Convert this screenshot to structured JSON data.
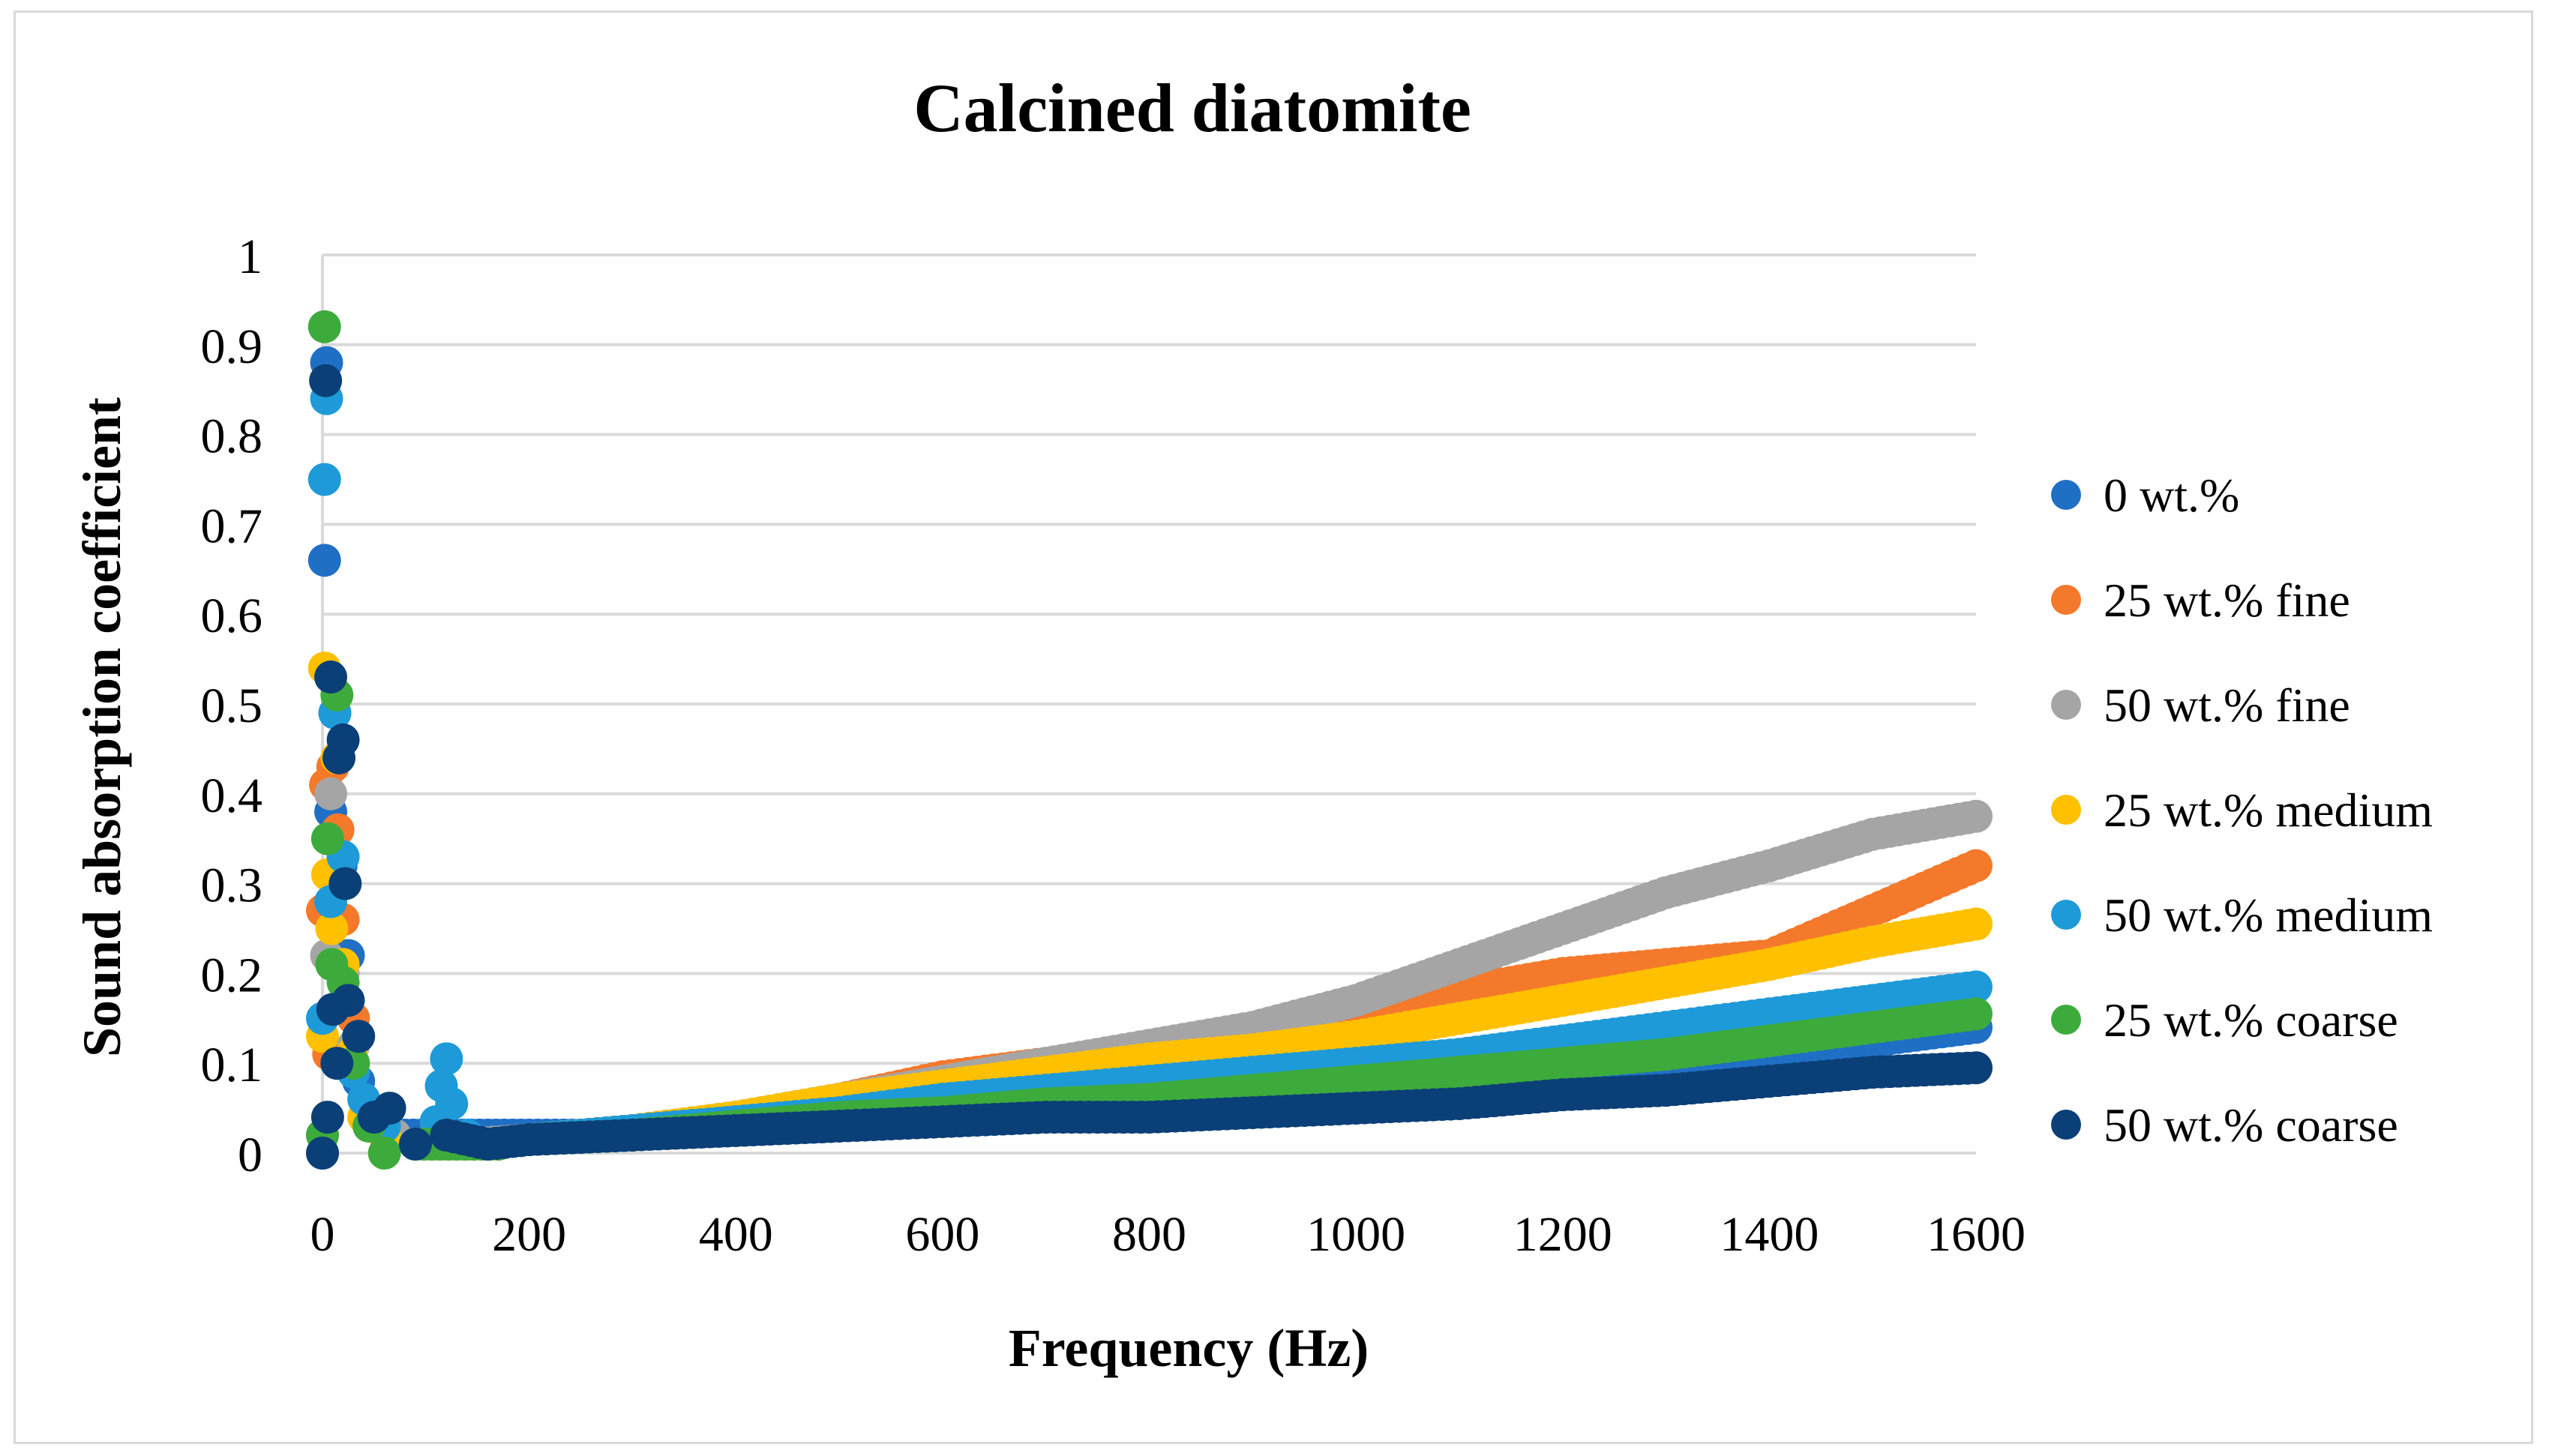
{
  "chart_data": {
    "type": "scatter",
    "title": "Calcined diatomite",
    "xlabel": "Frequency (Hz)",
    "ylabel": "Sound absorption coefficient",
    "xlim": [
      0,
      1600
    ],
    "ylim": [
      0,
      1
    ],
    "xticks": [
      "0",
      "200",
      "400",
      "600",
      "800",
      "1000",
      "1200",
      "1400",
      "1600"
    ],
    "yticks": [
      "0",
      "0.1",
      "0.2",
      "0.3",
      "0.4",
      "0.5",
      "0.6",
      "0.7",
      "0.8",
      "0.9",
      "1"
    ],
    "grid": true,
    "legend_position": "right",
    "series": [
      {
        "name": "0 wt.%",
        "color": "#1f6fc5",
        "x": [
          0,
          2,
          4,
          8,
          12,
          18,
          25,
          35,
          50,
          80,
          120,
          160,
          200,
          300,
          400,
          500,
          600,
          700,
          800,
          900,
          1000,
          1100,
          1200,
          1300,
          1400,
          1500,
          1600
        ],
        "y": [
          0.0,
          0.66,
          0.88,
          0.38,
          0.49,
          0.32,
          0.22,
          0.08,
          0.03,
          0.02,
          0.02,
          0.02,
          0.02,
          0.02,
          0.03,
          0.04,
          0.045,
          0.05,
          0.06,
          0.065,
          0.07,
          0.08,
          0.09,
          0.1,
          0.11,
          0.125,
          0.14
        ]
      },
      {
        "name": "25 wt.% fine",
        "color": "#f4792b",
        "x": [
          0,
          3,
          6,
          10,
          15,
          20,
          30,
          45,
          60,
          90,
          130,
          170,
          200,
          300,
          400,
          500,
          600,
          700,
          800,
          900,
          1000,
          1100,
          1200,
          1300,
          1400,
          1500,
          1600
        ],
        "y": [
          0.27,
          0.41,
          0.11,
          0.43,
          0.36,
          0.26,
          0.15,
          0.05,
          0.02,
          0.01,
          0.01,
          0.01,
          0.015,
          0.025,
          0.04,
          0.06,
          0.085,
          0.1,
          0.115,
          0.13,
          0.15,
          0.18,
          0.2,
          0.21,
          0.22,
          0.27,
          0.32
        ]
      },
      {
        "name": "50 wt.% fine",
        "color": "#a5a5a5",
        "x": [
          0,
          4,
          8,
          14,
          20,
          30,
          45,
          70,
          100,
          140,
          200,
          300,
          400,
          500,
          600,
          700,
          800,
          900,
          1000,
          1100,
          1200,
          1300,
          1400,
          1500,
          1600
        ],
        "y": [
          0.02,
          0.22,
          0.4,
          0.3,
          0.2,
          0.12,
          0.05,
          0.02,
          0.01,
          0.01,
          0.015,
          0.025,
          0.04,
          0.06,
          0.08,
          0.1,
          0.12,
          0.14,
          0.17,
          0.21,
          0.25,
          0.29,
          0.32,
          0.355,
          0.375
        ]
      },
      {
        "name": "25 wt.% medium",
        "color": "#ffc000",
        "x": [
          0,
          2,
          5,
          9,
          14,
          20,
          28,
          40,
          60,
          90,
          130,
          170,
          200,
          300,
          400,
          500,
          600,
          700,
          800,
          900,
          1000,
          1100,
          1200,
          1300,
          1400,
          1500,
          1600
        ],
        "y": [
          0.13,
          0.54,
          0.31,
          0.25,
          0.44,
          0.21,
          0.11,
          0.04,
          0.02,
          0.01,
          0.01,
          0.01,
          0.015,
          0.025,
          0.04,
          0.06,
          0.075,
          0.09,
          0.105,
          0.115,
          0.13,
          0.15,
          0.17,
          0.19,
          0.21,
          0.235,
          0.255
        ]
      },
      {
        "name": "50 wt.% medium",
        "color": "#1e9ad8",
        "x": [
          0,
          2,
          4,
          8,
          12,
          20,
          30,
          40,
          60,
          90,
          110,
          115,
          120,
          125,
          140,
          160,
          200,
          300,
          400,
          500,
          600,
          700,
          800,
          900,
          1000,
          1100,
          1200,
          1300,
          1400,
          1500,
          1600
        ],
        "y": [
          0.15,
          0.75,
          0.84,
          0.28,
          0.49,
          0.33,
          0.09,
          0.06,
          0.03,
          0.01,
          0.035,
          0.075,
          0.105,
          0.055,
          0.02,
          0.01,
          0.015,
          0.025,
          0.035,
          0.045,
          0.06,
          0.07,
          0.08,
          0.09,
          0.1,
          0.11,
          0.125,
          0.14,
          0.155,
          0.17,
          0.185
        ]
      },
      {
        "name": "25 wt.% coarse",
        "color": "#3dab3c",
        "x": [
          0,
          2,
          5,
          9,
          14,
          20,
          30,
          45,
          60,
          90,
          130,
          170,
          200,
          300,
          400,
          500,
          600,
          700,
          800,
          900,
          1000,
          1100,
          1200,
          1300,
          1400,
          1500,
          1600
        ],
        "y": [
          0.02,
          0.92,
          0.35,
          0.21,
          0.51,
          0.19,
          0.1,
          0.03,
          0.0,
          0.01,
          0.01,
          0.01,
          0.015,
          0.02,
          0.03,
          0.04,
          0.045,
          0.055,
          0.06,
          0.07,
          0.08,
          0.09,
          0.1,
          0.11,
          0.125,
          0.14,
          0.155
        ]
      },
      {
        "name": "50 wt.% coarse",
        "color": "#0b3f77",
        "x": [
          0,
          3,
          5,
          8,
          10,
          14,
          16,
          20,
          22,
          25,
          35,
          50,
          65,
          90,
          120,
          160,
          200,
          300,
          400,
          500,
          600,
          700,
          800,
          900,
          1000,
          1100,
          1200,
          1300,
          1400,
          1500,
          1600
        ],
        "y": [
          0.0,
          0.86,
          0.04,
          0.53,
          0.16,
          0.1,
          0.44,
          0.46,
          0.3,
          0.17,
          0.13,
          0.04,
          0.05,
          0.01,
          0.02,
          0.01,
          0.015,
          0.02,
          0.025,
          0.03,
          0.035,
          0.04,
          0.04,
          0.045,
          0.05,
          0.055,
          0.065,
          0.07,
          0.08,
          0.09,
          0.095
        ]
      }
    ]
  }
}
